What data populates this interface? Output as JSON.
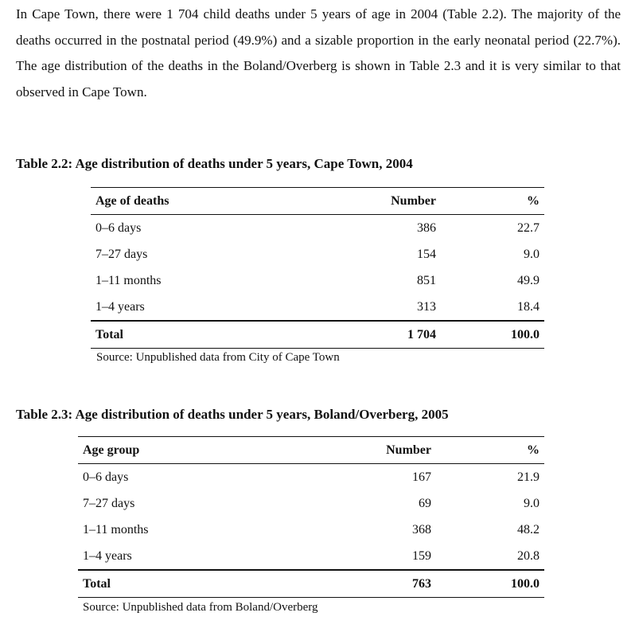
{
  "intro": {
    "paragraph": "In Cape Town, there were 1 704 child deaths under 5 years of age in 2004 (Table 2.2). The majority of the deaths occurred in the postnatal period (49.9%) and a sizable proportion in the early neonatal period (22.7%). The age distribution of the deaths in the Boland/Overberg is shown in Table 2.3 and it is very similar to that observed in Cape Town."
  },
  "table_2_2": {
    "caption": "Table 2.2: Age distribution of deaths under 5 years, Cape Town, 2004",
    "headers": [
      "Age of deaths",
      "Number",
      "%"
    ],
    "rows": [
      [
        "0–6 days",
        "386",
        "22.7"
      ],
      [
        "7–27 days",
        "154",
        "9.0"
      ],
      [
        "1–11 months",
        "851",
        "49.9"
      ],
      [
        "1–4 years",
        "313",
        "18.4"
      ]
    ],
    "total": [
      "Total",
      "1 704",
      "100.0"
    ],
    "source": "Source: Unpublished data from City of Cape Town"
  },
  "table_2_3": {
    "caption": "Table 2.3: Age distribution of deaths under 5 years, Boland/Overberg, 2005",
    "headers": [
      "Age group",
      "Number",
      "%"
    ],
    "rows": [
      [
        "0–6 days",
        "167",
        "21.9"
      ],
      [
        "7–27 days",
        "69",
        "9.0"
      ],
      [
        "1–11 months",
        "368",
        "48.2"
      ],
      [
        "1–4 years",
        "159",
        "20.8"
      ]
    ],
    "total": [
      "Total",
      "763",
      "100.0"
    ],
    "source": "Source: Unpublished data from Boland/Overberg"
  }
}
